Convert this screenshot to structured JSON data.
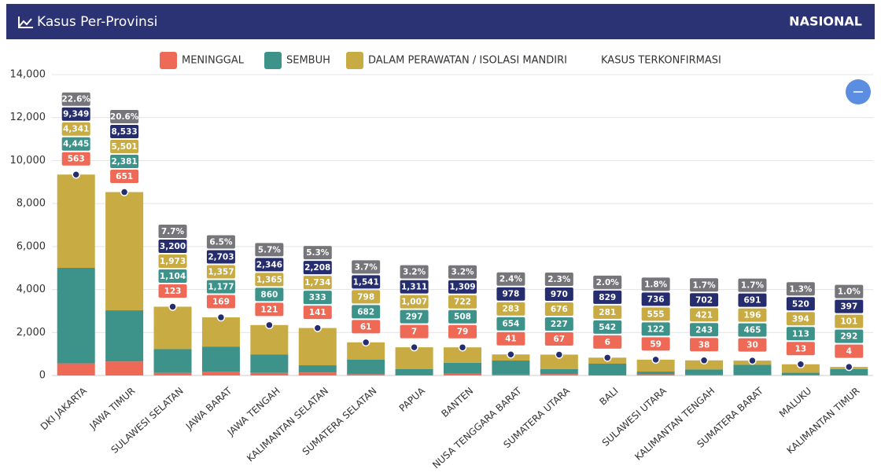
{
  "header": {
    "title": "Kasus Per-Provinsi",
    "scope": "NASIONAL"
  },
  "chart_data": {
    "type": "bar",
    "stacked": true,
    "grid": true,
    "categories": [
      "DKI JAKARTA",
      "JAWA TIMUR",
      "SULAWESI SELATAN",
      "JAWA BARAT",
      "JAWA TENGAH",
      "KALIMANTAN SELATAN",
      "SUMATERA SELATAN",
      "PAPUA",
      "BANTEN",
      "NUSA TENGGARA BARAT",
      "SUMATERA UTARA",
      "BALI",
      "SULAWESI UTARA",
      "KALIMANTAN TENGAH",
      "SUMATERA BARAT",
      "MALUKU",
      "KALIMANTAN TIMUR"
    ],
    "series": [
      {
        "name": "MENINGGAL",
        "color": "#ee6a56",
        "values": [
          563,
          651,
          123,
          169,
          121,
          141,
          61,
          7,
          79,
          41,
          67,
          6,
          59,
          38,
          30,
          13,
          4
        ],
        "value_labels": [
          "563",
          "651",
          "123",
          "169",
          "121",
          "141",
          "61",
          "7",
          "79",
          "41",
          "67",
          "6",
          "59",
          "38",
          "30",
          "13",
          "4"
        ]
      },
      {
        "name": "SEMBUH",
        "color": "#3d928a",
        "values": [
          4445,
          2381,
          1104,
          1177,
          860,
          333,
          682,
          297,
          508,
          654,
          227,
          542,
          122,
          243,
          465,
          113,
          292
        ],
        "value_labels": [
          "4,445",
          "2,381",
          "1,104",
          "1,177",
          "860",
          "333",
          "682",
          "297",
          "508",
          "654",
          "227",
          "542",
          "122",
          "243",
          "465",
          "113",
          "292"
        ]
      },
      {
        "name": "DALAM PERAWATAN / ISOLASI MANDIRI",
        "color": "#c8ab42",
        "values": [
          4341,
          5501,
          1973,
          1357,
          1365,
          1734,
          798,
          1007,
          722,
          283,
          676,
          281,
          555,
          421,
          196,
          394,
          101
        ],
        "value_labels": [
          "4,341",
          "5,501",
          "1,973",
          "1,357",
          "1,365",
          "1,734",
          "798",
          "1,007",
          "722",
          "283",
          "676",
          "281",
          "555",
          "421",
          "196",
          "394",
          "101"
        ]
      },
      {
        "name": "KASUS TERKONFIRMASI",
        "type": "scatter",
        "color": "#252d6e",
        "values": [
          9349,
          8533,
          3200,
          2703,
          2346,
          2208,
          1541,
          1311,
          1309,
          978,
          970,
          829,
          736,
          702,
          691,
          520,
          397
        ],
        "value_labels": [
          "9,349",
          "8,533",
          "3,200",
          "2,703",
          "2,346",
          "2,208",
          "1,541",
          "1,311",
          "1,309",
          "978",
          "970",
          "829",
          "736",
          "702",
          "691",
          "520",
          "397"
        ]
      }
    ],
    "shares": {
      "color": "#75757a",
      "values": [
        22.6,
        20.6,
        7.7,
        6.5,
        5.7,
        5.3,
        3.7,
        3.2,
        3.2,
        2.4,
        2.3,
        2.0,
        1.8,
        1.7,
        1.7,
        1.3,
        1.0
      ],
      "value_labels": [
        "22.6%",
        "20.6%",
        "7.7%",
        "6.5%",
        "5.7%",
        "5.3%",
        "3.7%",
        "3.2%",
        "3.2%",
        "2.4%",
        "2.3%",
        "2.0%",
        "1.8%",
        "1.7%",
        "1.7%",
        "1.3%",
        "1.0%"
      ]
    },
    "ylim": [
      0,
      14000
    ],
    "yticks": [
      0,
      {
        "value": 2000,
        "label": "2,000"
      },
      {
        "value": 4000,
        "label": "4,000"
      },
      {
        "value": 6000,
        "label": "6,000"
      },
      {
        "value": 8000,
        "label": "8,000"
      },
      {
        "value": 10000,
        "label": "10,000"
      },
      {
        "value": 12000,
        "label": "12,000"
      },
      {
        "value": 14000,
        "label": "14,000"
      }
    ]
  }
}
